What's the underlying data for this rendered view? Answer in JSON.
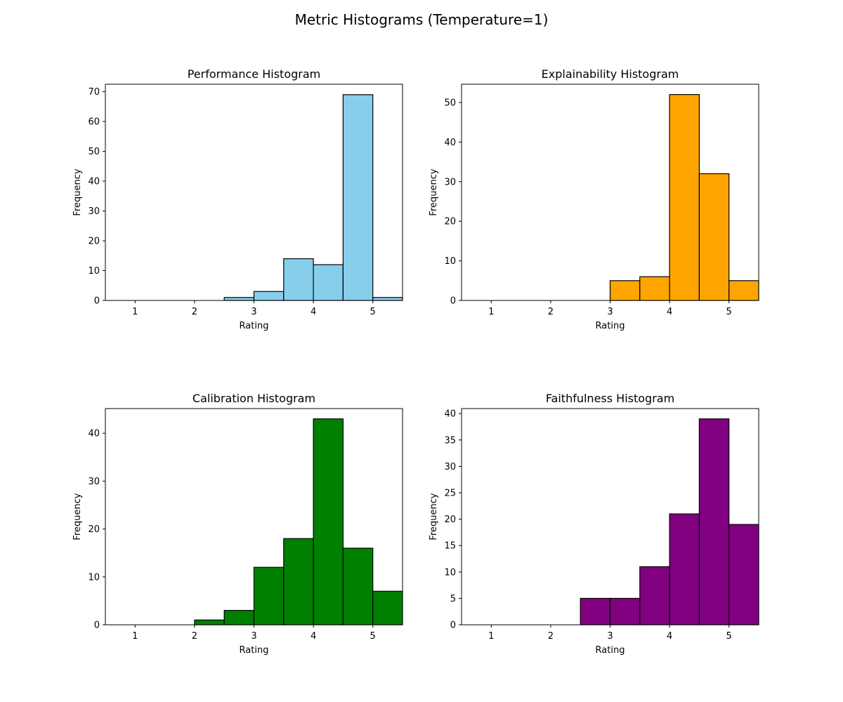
{
  "figure": {
    "title": "Metric Histograms (Temperature=1)"
  },
  "chart_data": [
    {
      "type": "bar",
      "title": "Performance Histogram",
      "xlabel": "Rating",
      "ylabel": "Frequency",
      "xlim": [
        0.5,
        5.5
      ],
      "ylim": [
        0,
        72.5
      ],
      "xticks": [
        1,
        2,
        3,
        4,
        5
      ],
      "yticks": [
        0,
        10,
        20,
        30,
        40,
        50,
        60,
        70
      ],
      "bin_edges": [
        0.5,
        1.0,
        1.5,
        2.0,
        2.5,
        3.0,
        3.5,
        4.0,
        4.5,
        5.0,
        5.5
      ],
      "values": [
        0,
        0,
        0,
        0,
        1,
        3,
        14,
        12,
        69,
        1
      ],
      "color": "#87CEEB",
      "edgecolor": "#000000",
      "grid": false
    },
    {
      "type": "bar",
      "title": "Explainability Histogram",
      "xlabel": "Rating",
      "ylabel": "Frequency",
      "xlim": [
        0.5,
        5.5
      ],
      "ylim": [
        0,
        54.6
      ],
      "xticks": [
        1,
        2,
        3,
        4,
        5
      ],
      "yticks": [
        0,
        10,
        20,
        30,
        40,
        50
      ],
      "bin_edges": [
        0.5,
        1.0,
        1.5,
        2.0,
        2.5,
        3.0,
        3.5,
        4.0,
        4.5,
        5.0,
        5.5
      ],
      "values": [
        0,
        0,
        0,
        0,
        0,
        5,
        6,
        52,
        32,
        5
      ],
      "color": "#FFA500",
      "edgecolor": "#000000",
      "grid": false
    },
    {
      "type": "bar",
      "title": "Calibration Histogram",
      "xlabel": "Rating",
      "ylabel": "Frequency",
      "xlim": [
        0.5,
        5.5
      ],
      "ylim": [
        0,
        45.15
      ],
      "xticks": [
        1,
        2,
        3,
        4,
        5
      ],
      "yticks": [
        0,
        10,
        20,
        30,
        40
      ],
      "bin_edges": [
        0.5,
        1.0,
        1.5,
        2.0,
        2.5,
        3.0,
        3.5,
        4.0,
        4.5,
        5.0,
        5.5
      ],
      "values": [
        0,
        0,
        0,
        1,
        3,
        12,
        18,
        43,
        16,
        7
      ],
      "color": "#008000",
      "edgecolor": "#000000",
      "grid": false
    },
    {
      "type": "bar",
      "title": "Faithfulness Histogram",
      "xlabel": "Rating",
      "ylabel": "Frequency",
      "xlim": [
        0.5,
        5.5
      ],
      "ylim": [
        0,
        40.95
      ],
      "xticks": [
        1,
        2,
        3,
        4,
        5
      ],
      "yticks": [
        0,
        5,
        10,
        15,
        20,
        25,
        30,
        35,
        40
      ],
      "bin_edges": [
        0.5,
        1.0,
        1.5,
        2.0,
        2.5,
        3.0,
        3.5,
        4.0,
        4.5,
        5.0,
        5.5
      ],
      "values": [
        0,
        0,
        0,
        0,
        5,
        5,
        11,
        21,
        39,
        19
      ],
      "color": "#800080",
      "edgecolor": "#000000",
      "grid": false
    }
  ]
}
